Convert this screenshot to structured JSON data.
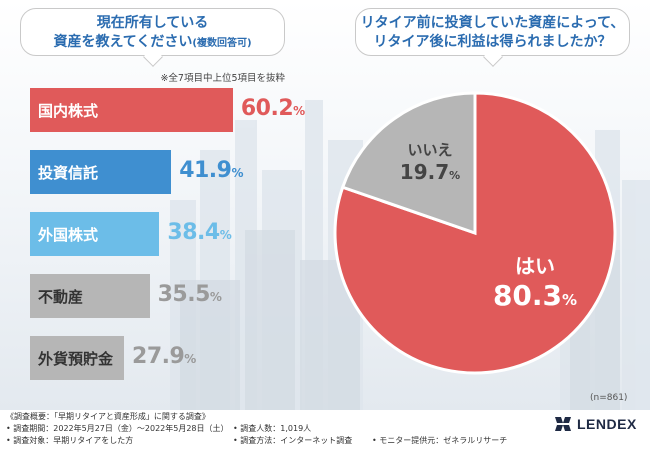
{
  "left_question": {
    "line1": "現在所有している",
    "line2": "資産を教えてください",
    "note_inline": "(複数回答可)",
    "subnote": "※全7項目中上位5項目を抜粋"
  },
  "right_question": {
    "line1": "リタイア前に投資していた資産によって、",
    "line2": "リタイア後に利益は得られましたか？"
  },
  "colors": {
    "red": "#e05a5a",
    "blue_dark": "#3f8fd0",
    "blue_light": "#6cbde8",
    "gray": "#b6b6b6",
    "gray_label": "#9a9a9a"
  },
  "chart_data": [
    {
      "type": "bar",
      "orientation": "horizontal",
      "categories": [
        "国内株式",
        "投資信託",
        "外国株式",
        "不動産",
        "外貨預貯金"
      ],
      "values": [
        60.2,
        41.9,
        38.4,
        35.5,
        27.9
      ],
      "value_labels": [
        "60.2",
        "41.9",
        "38.4",
        "35.5",
        "27.9"
      ],
      "unit": "%",
      "xlim": [
        0,
        100
      ]
    },
    {
      "type": "pie",
      "labels": [
        "はい",
        "いいえ"
      ],
      "values": [
        80.3,
        19.7
      ],
      "value_labels": [
        "80.3",
        "19.7"
      ],
      "unit": "%",
      "n_label": "(n=861)"
    }
  ],
  "footer": {
    "overview": "《調査概要：「早期リタイアと資産形成」に関する調査》",
    "period": "• 調査期間：2022年5月27日（金）〜2022年5月28日（土）",
    "count": "• 調査人数：1,019人",
    "target": "• 調査対象：早期リタイアをした方",
    "method": "• 調査方法：インターネット調査",
    "monitor": "• モニター提供元：ゼネラルリサーチ"
  },
  "logo": {
    "text": "LENDEX"
  }
}
